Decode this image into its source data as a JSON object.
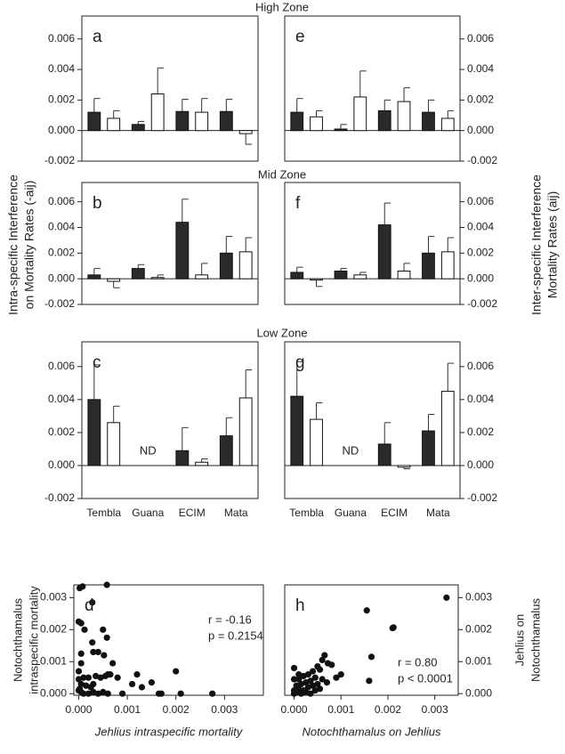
{
  "figure": {
    "zones": [
      "High Zone",
      "Mid Zone",
      "Low Zone"
    ],
    "left_ylabel": [
      "Intra-specific Interference",
      "on Mortality Rates (-aij)"
    ],
    "right_ylabel": [
      "Inter-specific Interference",
      "Mortality Rates (aij)"
    ]
  },
  "chart_data": [
    {
      "type": "bar",
      "label": "a",
      "categories": [
        null,
        null,
        null,
        null
      ],
      "series": [
        {
          "color": "#2a2a2a",
          "values": [
            0.0012,
            0.0004,
            0.00125,
            0.00125
          ],
          "errors": [
            0.0009,
            0.0002,
            0.0008,
            0.0008
          ]
        },
        {
          "color": "#ffffff",
          "values": [
            0.0008,
            0.0024,
            0.0012,
            -0.0002
          ],
          "errors": [
            0.0005,
            0.0017,
            0.0009,
            0.0007
          ]
        }
      ],
      "ylim": [
        -0.002,
        0.0075
      ],
      "yticks": [
        -0.002,
        {
          "value": 0,
          "label": "0.000"
        },
        0.002,
        0.004,
        0.006
      ]
    },
    {
      "type": "bar",
      "label": "e",
      "categories": [
        null,
        null,
        null,
        null
      ],
      "series": [
        {
          "color": "#2a2a2a",
          "values": [
            0.0012,
            0.0001,
            0.0013,
            0.0012
          ],
          "errors": [
            0.0009,
            0.0003,
            0.0007,
            0.0008
          ]
        },
        {
          "color": "#ffffff",
          "values": [
            0.0009,
            0.0022,
            0.0019,
            0.0008
          ],
          "errors": [
            0.0004,
            0.0017,
            0.0009,
            0.0005
          ]
        }
      ],
      "ylim": [
        -0.002,
        0.0075
      ],
      "yticks": [
        -0.002,
        {
          "value": 0,
          "label": "0.000"
        },
        0.002,
        0.004,
        0.006
      ]
    },
    {
      "type": "bar",
      "label": "b",
      "categories": [
        null,
        null,
        null,
        null
      ],
      "series": [
        {
          "color": "#2a2a2a",
          "values": [
            0.0003,
            0.0008,
            0.0044,
            0.002
          ],
          "errors": [
            0.0005,
            0.0003,
            0.0018,
            0.0013
          ]
        },
        {
          "color": "#ffffff",
          "values": [
            -0.0002,
            0.0001,
            0.0003,
            0.0021
          ],
          "errors": [
            0.0005,
            0.0002,
            0.0009,
            0.0011
          ]
        }
      ],
      "ylim": [
        -0.002,
        0.0075
      ],
      "yticks": [
        -0.002,
        {
          "value": 0,
          "label": "0.000"
        },
        0.002,
        0.004,
        0.006
      ]
    },
    {
      "type": "bar",
      "label": "f",
      "categories": [
        null,
        null,
        null,
        null
      ],
      "series": [
        {
          "color": "#2a2a2a",
          "values": [
            0.0005,
            0.0006,
            0.0042,
            0.002
          ],
          "errors": [
            0.0004,
            0.0002,
            0.0017,
            0.0013
          ]
        },
        {
          "color": "#ffffff",
          "values": [
            -0.0001,
            0.0003,
            0.0006,
            0.0021
          ],
          "errors": [
            0.0005,
            0.0002,
            0.0006,
            0.0011
          ]
        }
      ],
      "ylim": [
        -0.002,
        0.0075
      ],
      "yticks": [
        -0.002,
        {
          "value": 0,
          "label": "0.000"
        },
        0.002,
        0.004,
        0.006
      ]
    },
    {
      "type": "bar",
      "label": "c",
      "categories": [
        "Tembla",
        "Guana",
        "ECIM",
        "Mata"
      ],
      "missing_label": "ND",
      "series": [
        {
          "color": "#2a2a2a",
          "values": [
            0.004,
            null,
            0.0009,
            0.0018
          ],
          "errors": [
            0.0021,
            null,
            0.0014,
            0.0011
          ]
        },
        {
          "color": "#ffffff",
          "values": [
            0.0026,
            null,
            0.0002,
            0.0041
          ],
          "errors": [
            0.001,
            null,
            0.0002,
            0.0017
          ]
        }
      ],
      "ylim": [
        -0.002,
        0.0075
      ],
      "yticks": [
        -0.002,
        {
          "value": 0,
          "label": "0.000"
        },
        0.002,
        0.004,
        0.006
      ]
    },
    {
      "type": "bar",
      "label": "g",
      "categories": [
        "Tembla",
        "Guana",
        "ECIM",
        "Mata"
      ],
      "missing_label": "ND",
      "series": [
        {
          "color": "#2a2a2a",
          "values": [
            0.0042,
            null,
            0.0013,
            0.0021
          ],
          "errors": [
            0.0021,
            null,
            0.0013,
            0.001
          ]
        },
        {
          "color": "#ffffff",
          "values": [
            0.0028,
            null,
            -0.0001,
            0.0045
          ],
          "errors": [
            0.001,
            null,
            0.0001,
            0.0017
          ]
        }
      ],
      "ylim": [
        -0.002,
        0.0075
      ],
      "yticks": [
        -0.002,
        {
          "value": 0,
          "label": "0.000"
        },
        0.002,
        0.004,
        0.006
      ]
    },
    {
      "type": "scatter",
      "label": "d",
      "color": "#111111",
      "xlabel": "Jehlius intraspecific mortality",
      "ylabel": [
        "Notochthamalus",
        "intraspecific mortality"
      ],
      "annotations": [
        "r = -0.16",
        "p = 0.2154"
      ],
      "x": [
        2e-05,
        8e-05,
        0.00058,
        0,
        5e-05,
        0.00028,
        0.00012,
        0.0005,
        0.00028,
        0.00058,
        0.0003,
        0.0004,
        5e-05,
        0.00052,
        5e-05,
        0.0007,
        0,
        0.0001,
        0.0002,
        0.00035,
        0.00045,
        0.00055,
        0.0006,
        0.00065,
        0.0008,
        0.0012,
        0.002,
        0.0015,
        5e-05,
        0.00015,
        0.00025,
        0.0003,
        0,
        5e-05,
        0.0001,
        0.0002,
        0.0003,
        0.0004,
        0.0005,
        0.0006,
        0.0009,
        0.0011,
        0.0013,
        0.00165,
        0.0017,
        0.0021,
        0.00275,
        0,
        2e-05
      ],
      "y": [
        0.0033,
        0.00335,
        0.0034,
        0.00225,
        0.0022,
        0.00285,
        0.002,
        0.002,
        0.0016,
        0.00175,
        0.0013,
        0.0013,
        0.00125,
        0.0012,
        0.00095,
        0.00095,
        0.0007,
        0.0005,
        0.0005,
        0.00055,
        0.0005,
        0.00055,
        0.0006,
        0.0006,
        0.0005,
        0.0006,
        0.0007,
        0.00035,
        0.0003,
        0.00025,
        0.0002,
        0.0003,
        0.0001,
        5e-05,
        0,
        0,
        5e-05,
        0,
        5e-05,
        0,
        0,
        0.0003,
        0.0002,
        0,
        0,
        0,
        0,
        0.00045,
        0.00015
      ],
      "xlim": [
        -0.0001,
        0.0038
      ],
      "ylim": [
        -5e-05,
        0.0034
      ],
      "xticks": [
        {
          "value": 0,
          "label": "0.000"
        },
        0.001,
        0.002,
        0.003
      ],
      "yticks": [
        {
          "value": 0,
          "label": "0.000"
        },
        0.001,
        0.002,
        0.003
      ]
    },
    {
      "type": "scatter",
      "label": "h",
      "color": "#111111",
      "xlabel": "Notochthamalus on Jehlius",
      "ylabel": [
        "Jehlius on",
        "Notochthamalus"
      ],
      "annotations": [
        "r = 0.80",
        "p < 0.0001"
      ],
      "x": [
        0.00325,
        0.00155,
        0.0021,
        0.00212,
        0.00165,
        0.00065,
        0.0006,
        0.00072,
        0.0008,
        0.0005,
        0.00055,
        0.0016,
        0,
        0.0001,
        0.0002,
        0.0003,
        0.0004,
        0.00045,
        0.00035,
        0.00025,
        0.00015,
        5e-05,
        0,
        0.0001,
        0.0002,
        0.0003,
        0.0004,
        0.0005,
        0.0006,
        0.0007,
        0.0009,
        0,
        5e-05,
        0.00015,
        0.00025,
        0.00035,
        0.00045,
        0.00055,
        0,
        0.0001,
        0.001
      ],
      "y": [
        0.003,
        0.0026,
        0.00205,
        0.00207,
        0.00115,
        0.0012,
        0.00105,
        0.00095,
        0.0009,
        0.00085,
        0.00075,
        0.0004,
        0.0008,
        0.0006,
        0.00055,
        0.0006,
        0.0007,
        0.0005,
        0.0004,
        0.00035,
        0.0003,
        0.00025,
        0.0001,
        0.00015,
        0.0001,
        0.0002,
        0.00025,
        0.0003,
        0.00045,
        0.00035,
        0.0005,
        0,
        5e-05,
        0,
        5e-05,
        0,
        0.0001,
        0.00015,
        0.00045,
        0.00045,
        0.0006
      ],
      "xlim": [
        -0.0002,
        0.0035
      ],
      "ylim": [
        -5e-05,
        0.0034
      ],
      "xticks": [
        {
          "value": 0,
          "label": "0.000"
        },
        0.001,
        0.002,
        0.003
      ],
      "yticks": [
        {
          "value": 0,
          "label": "0.000"
        },
        0.001,
        0.002,
        0.003
      ]
    }
  ]
}
